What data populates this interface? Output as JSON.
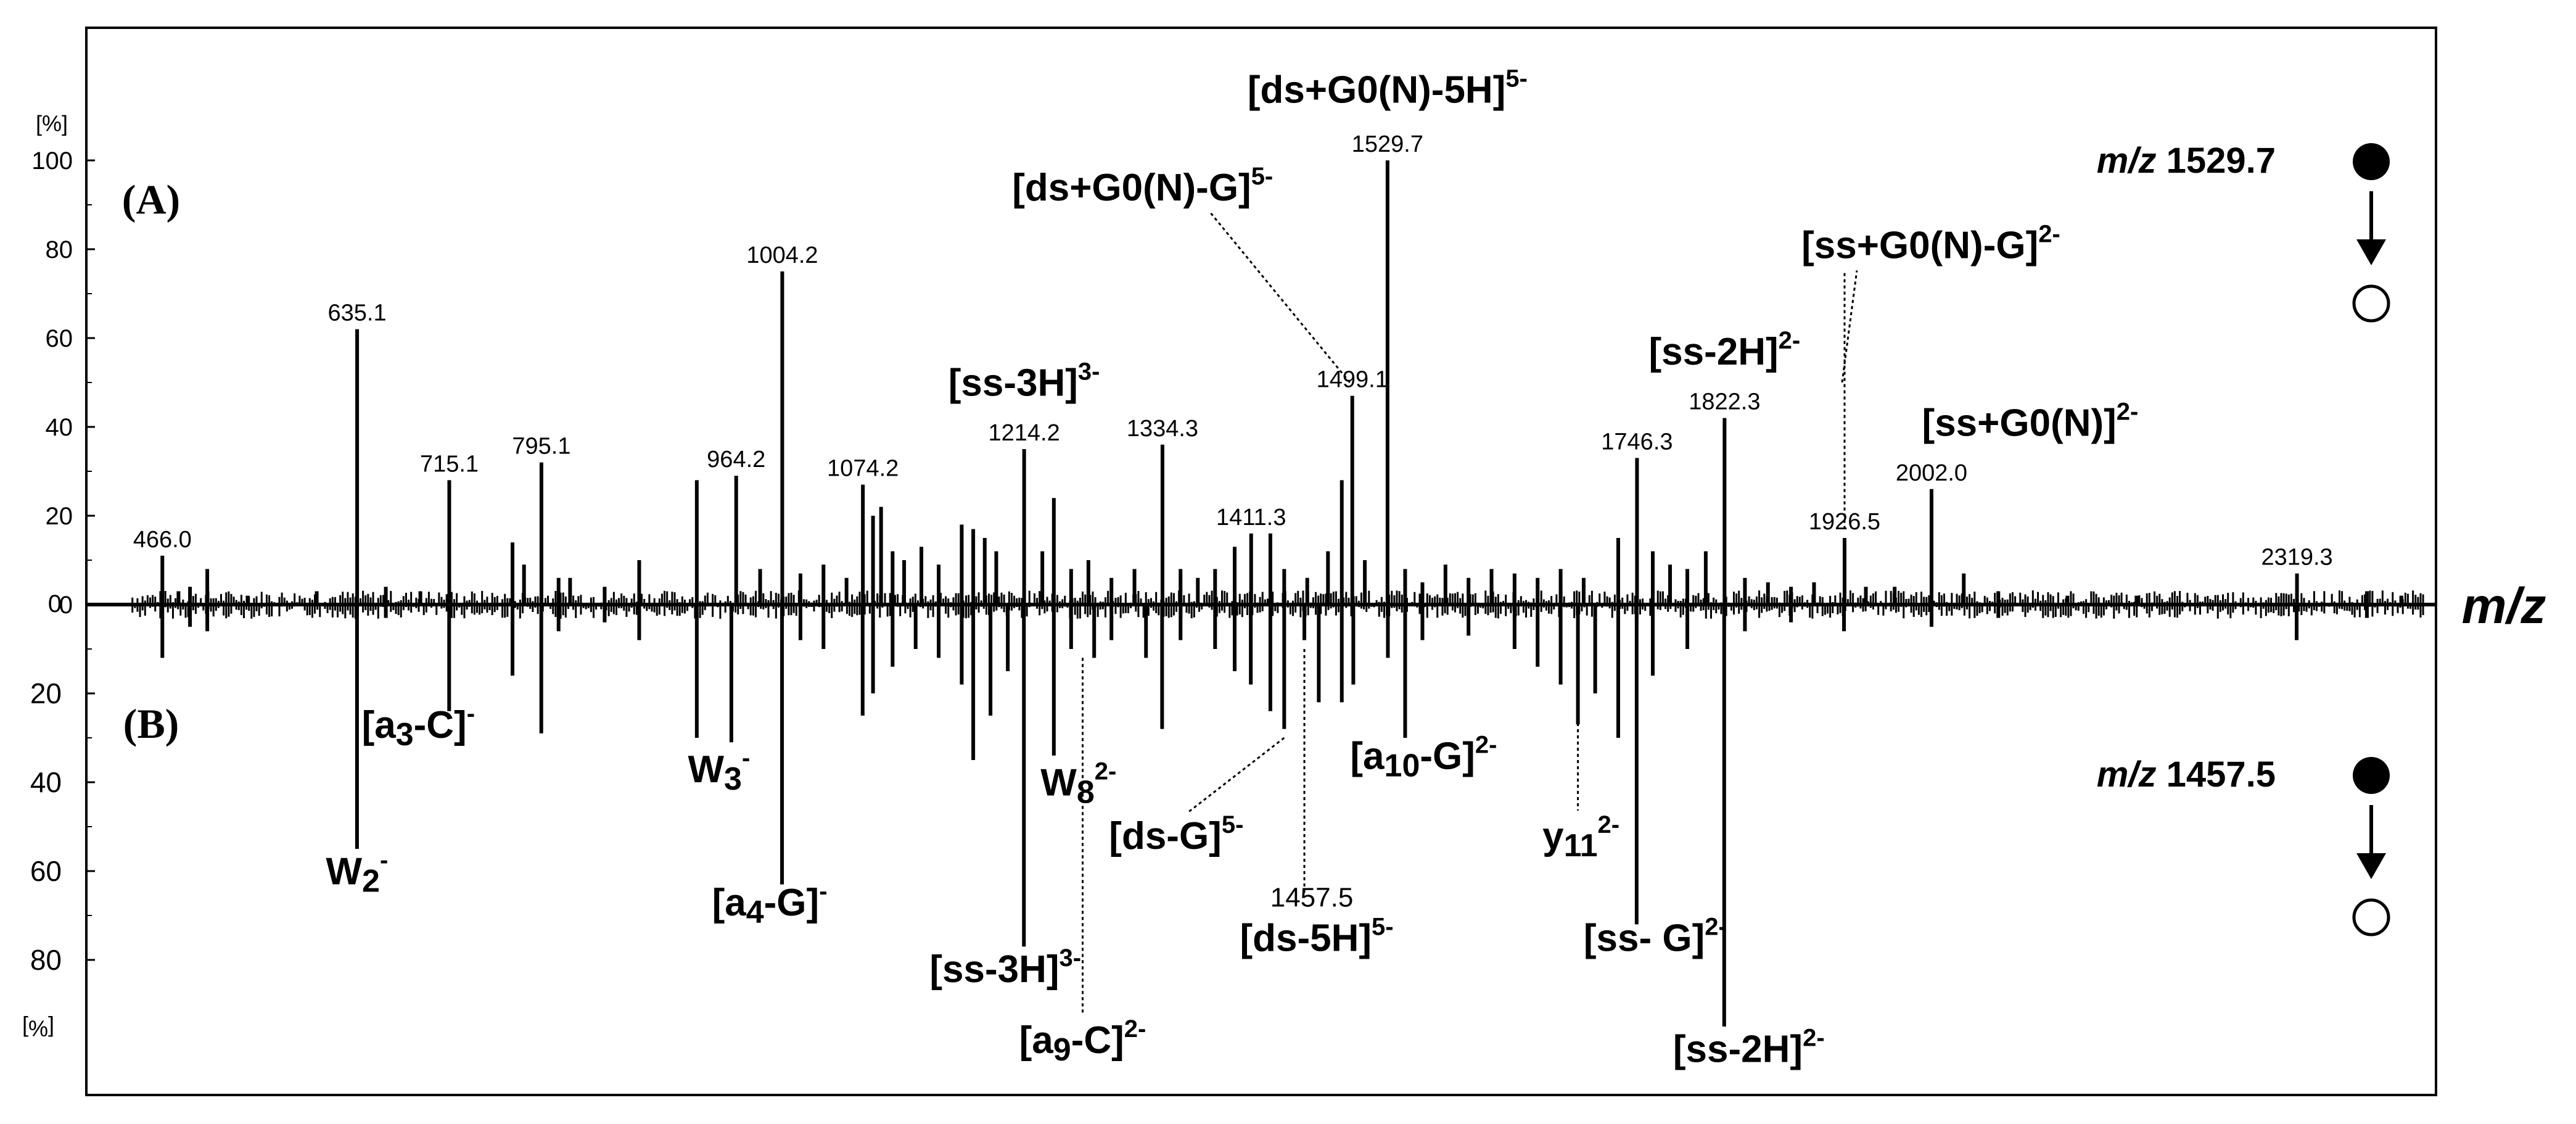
{
  "chart_data": {
    "type": "bar",
    "title": "",
    "xlabel": "m/z",
    "ylabel_top": "[%]",
    "ylabel_bottom": "[%]",
    "ylim_top": [
      0,
      110
    ],
    "ylim_bottom": [
      0,
      100
    ],
    "xlim": [
      400,
      2440
    ],
    "yticks_top": [
      "0",
      "20",
      "40",
      "60",
      "80",
      "100"
    ],
    "yticks_bottom": [
      "20",
      "40",
      "60",
      "80"
    ],
    "grid": false,
    "panels": [
      {
        "name": "(A)",
        "precursor_label": "m/z",
        "precursor_value": "1529.7",
        "direction": "up",
        "peaks": [
          {
            "x": 466.0,
            "y": 11
          },
          {
            "x": 480,
            "y": 3
          },
          {
            "x": 490,
            "y": 4
          },
          {
            "x": 505,
            "y": 8
          },
          {
            "x": 540,
            "y": 2
          },
          {
            "x": 600,
            "y": 3
          },
          {
            "x": 635.1,
            "y": 62
          },
          {
            "x": 660,
            "y": 4
          },
          {
            "x": 690,
            "y": 3
          },
          {
            "x": 715.1,
            "y": 28
          },
          {
            "x": 770,
            "y": 14
          },
          {
            "x": 780,
            "y": 9
          },
          {
            "x": 795.1,
            "y": 32
          },
          {
            "x": 810,
            "y": 6
          },
          {
            "x": 820,
            "y": 6
          },
          {
            "x": 850,
            "y": 4
          },
          {
            "x": 880,
            "y": 10
          },
          {
            "x": 930,
            "y": 28
          },
          {
            "x": 964.2,
            "y": 29
          },
          {
            "x": 985,
            "y": 8
          },
          {
            "x": 1004.2,
            "y": 75
          },
          {
            "x": 1020,
            "y": 7
          },
          {
            "x": 1040,
            "y": 9
          },
          {
            "x": 1060,
            "y": 6
          },
          {
            "x": 1074.2,
            "y": 27
          },
          {
            "x": 1083,
            "y": 20
          },
          {
            "x": 1090,
            "y": 22
          },
          {
            "x": 1100,
            "y": 12
          },
          {
            "x": 1110,
            "y": 10
          },
          {
            "x": 1125,
            "y": 13
          },
          {
            "x": 1140,
            "y": 9
          },
          {
            "x": 1160,
            "y": 18
          },
          {
            "x": 1170,
            "y": 17
          },
          {
            "x": 1180,
            "y": 15
          },
          {
            "x": 1190,
            "y": 12
          },
          {
            "x": 1214.2,
            "y": 35
          },
          {
            "x": 1230,
            "y": 12
          },
          {
            "x": 1240,
            "y": 24
          },
          {
            "x": 1255,
            "y": 8
          },
          {
            "x": 1270,
            "y": 10
          },
          {
            "x": 1290,
            "y": 6
          },
          {
            "x": 1310,
            "y": 8
          },
          {
            "x": 1334.3,
            "y": 36
          },
          {
            "x": 1350,
            "y": 8
          },
          {
            "x": 1365,
            "y": 6
          },
          {
            "x": 1380,
            "y": 8
          },
          {
            "x": 1397,
            "y": 13
          },
          {
            "x": 1411.3,
            "y": 16
          },
          {
            "x": 1428,
            "y": 16
          },
          {
            "x": 1440,
            "y": 8
          },
          {
            "x": 1460,
            "y": 6
          },
          {
            "x": 1478,
            "y": 12
          },
          {
            "x": 1490,
            "y": 28
          },
          {
            "x": 1499.1,
            "y": 47
          },
          {
            "x": 1510,
            "y": 10
          },
          {
            "x": 1529.7,
            "y": 100
          },
          {
            "x": 1545,
            "y": 8
          },
          {
            "x": 1560,
            "y": 5
          },
          {
            "x": 1580,
            "y": 9
          },
          {
            "x": 1600,
            "y": 6
          },
          {
            "x": 1620,
            "y": 8
          },
          {
            "x": 1640,
            "y": 7
          },
          {
            "x": 1660,
            "y": 6
          },
          {
            "x": 1680,
            "y": 8
          },
          {
            "x": 1700,
            "y": 6
          },
          {
            "x": 1730,
            "y": 15
          },
          {
            "x": 1746.3,
            "y": 33
          },
          {
            "x": 1760,
            "y": 12
          },
          {
            "x": 1775,
            "y": 9
          },
          {
            "x": 1790,
            "y": 8
          },
          {
            "x": 1806,
            "y": 12
          },
          {
            "x": 1822.3,
            "y": 42
          },
          {
            "x": 1840,
            "y": 6
          },
          {
            "x": 1860,
            "y": 5
          },
          {
            "x": 1880,
            "y": 4
          },
          {
            "x": 1900,
            "y": 5
          },
          {
            "x": 1926.5,
            "y": 15
          },
          {
            "x": 1945,
            "y": 4
          },
          {
            "x": 1970,
            "y": 4
          },
          {
            "x": 2002.0,
            "y": 26
          },
          {
            "x": 2030,
            "y": 7
          },
          {
            "x": 2060,
            "y": 3
          },
          {
            "x": 2120,
            "y": 2
          },
          {
            "x": 2180,
            "y": 2
          },
          {
            "x": 2319.3,
            "y": 7
          },
          {
            "x": 2380,
            "y": 3
          },
          {
            "x": 2410,
            "y": 2
          }
        ],
        "peak_labels": [
          {
            "x": 466.0,
            "y": 11,
            "text": "466.0"
          },
          {
            "x": 635.1,
            "y": 62,
            "text": "635.1"
          },
          {
            "x": 715.1,
            "y": 28,
            "text": "715.1"
          },
          {
            "x": 795.1,
            "y": 32,
            "text": "795.1"
          },
          {
            "x": 964.2,
            "y": 29,
            "text": "964.2"
          },
          {
            "x": 1004.2,
            "y": 75,
            "text": "1004.2"
          },
          {
            "x": 1074.2,
            "y": 27,
            "text": "1074.2"
          },
          {
            "x": 1214.2,
            "y": 35,
            "text": "1214.2"
          },
          {
            "x": 1334.3,
            "y": 36,
            "text": "1334.3"
          },
          {
            "x": 1411.3,
            "y": 16,
            "text": "1411.3"
          },
          {
            "x": 1499.1,
            "y": 47,
            "text": "1499.1"
          },
          {
            "x": 1529.7,
            "y": 100,
            "text": "1529.7"
          },
          {
            "x": 1746.3,
            "y": 33,
            "text": "1746.3"
          },
          {
            "x": 1822.3,
            "y": 42,
            "text": "1822.3"
          },
          {
            "x": 1926.5,
            "y": 15,
            "text": "1926.5"
          },
          {
            "x": 2002.0,
            "y": 26,
            "text": "2002.0"
          },
          {
            "x": 2319.3,
            "y": 7,
            "text": "2319.3"
          }
        ],
        "ion_labels": [
          {
            "base": "[ds+G0(N)-5H]",
            "sup": "5-",
            "x": 1529.7,
            "level": 113,
            "dotted": false
          },
          {
            "base": "[ds+G0(N)-G]",
            "sup": "5-",
            "x": 1499.1,
            "level": 91,
            "dotted": true
          },
          {
            "base": "[ss+G0(N)-G]",
            "sup": "2-",
            "x": 1926.5,
            "level": 78,
            "dotted": true
          },
          {
            "base": "[ss-2H]",
            "sup": "2-",
            "x": 1822.3,
            "level": 54,
            "dotted": false
          },
          {
            "base": "[ss-3H]",
            "sup": "3-",
            "x": 1214.2,
            "level": 47,
            "dotted": false
          },
          {
            "base": "[ss+G0(N)]",
            "sup": "2-",
            "x": 2002.0,
            "level": 38,
            "dotted": false
          }
        ]
      },
      {
        "name": "(B)",
        "precursor_label": "m/z",
        "precursor_value": "1457.5",
        "direction": "down",
        "peaks": [
          {
            "x": 466,
            "y": 12
          },
          {
            "x": 490,
            "y": 5
          },
          {
            "x": 505,
            "y": 6
          },
          {
            "x": 635,
            "y": 55
          },
          {
            "x": 660,
            "y": 3
          },
          {
            "x": 715,
            "y": 24
          },
          {
            "x": 770,
            "y": 16
          },
          {
            "x": 795,
            "y": 29
          },
          {
            "x": 810,
            "y": 6
          },
          {
            "x": 850,
            "y": 4
          },
          {
            "x": 880,
            "y": 8
          },
          {
            "x": 930,
            "y": 30
          },
          {
            "x": 960,
            "y": 31
          },
          {
            "x": 1004,
            "y": 63
          },
          {
            "x": 1020,
            "y": 8
          },
          {
            "x": 1040,
            "y": 10
          },
          {
            "x": 1074,
            "y": 25
          },
          {
            "x": 1083,
            "y": 20
          },
          {
            "x": 1100,
            "y": 14
          },
          {
            "x": 1120,
            "y": 10
          },
          {
            "x": 1140,
            "y": 12
          },
          {
            "x": 1160,
            "y": 18
          },
          {
            "x": 1170,
            "y": 35
          },
          {
            "x": 1185,
            "y": 25
          },
          {
            "x": 1200,
            "y": 15
          },
          {
            "x": 1214,
            "y": 77
          },
          {
            "x": 1240,
            "y": 34
          },
          {
            "x": 1255,
            "y": 10
          },
          {
            "x": 1275,
            "y": 12
          },
          {
            "x": 1290,
            "y": 8
          },
          {
            "x": 1320,
            "y": 12
          },
          {
            "x": 1334,
            "y": 28
          },
          {
            "x": 1350,
            "y": 8
          },
          {
            "x": 1380,
            "y": 10
          },
          {
            "x": 1397,
            "y": 15
          },
          {
            "x": 1411,
            "y": 18
          },
          {
            "x": 1428,
            "y": 24
          },
          {
            "x": 1440,
            "y": 28
          },
          {
            "x": 1457.5,
            "y": 8
          },
          {
            "x": 1470,
            "y": 22
          },
          {
            "x": 1490,
            "y": 22
          },
          {
            "x": 1500,
            "y": 18
          },
          {
            "x": 1530,
            "y": 12
          },
          {
            "x": 1545,
            "y": 30
          },
          {
            "x": 1560,
            "y": 8
          },
          {
            "x": 1600,
            "y": 7
          },
          {
            "x": 1640,
            "y": 10
          },
          {
            "x": 1660,
            "y": 14
          },
          {
            "x": 1680,
            "y": 18
          },
          {
            "x": 1695,
            "y": 27
          },
          {
            "x": 1710,
            "y": 20
          },
          {
            "x": 1730,
            "y": 30
          },
          {
            "x": 1746,
            "y": 72
          },
          {
            "x": 1760,
            "y": 16
          },
          {
            "x": 1790,
            "y": 10
          },
          {
            "x": 1822,
            "y": 95
          },
          {
            "x": 1840,
            "y": 6
          },
          {
            "x": 1880,
            "y": 4
          },
          {
            "x": 1926,
            "y": 6
          },
          {
            "x": 2002,
            "y": 5
          },
          {
            "x": 2060,
            "y": 3
          },
          {
            "x": 2319,
            "y": 8
          },
          {
            "x": 2380,
            "y": 3
          }
        ],
        "peak_labels": [
          {
            "x": 1457.5,
            "y": 8,
            "text": "1457.5"
          }
        ],
        "ion_labels": [
          {
            "base": "[a",
            "sub": "3",
            "tail": "-C]",
            "sup": "-",
            "x": 715,
            "level": 30,
            "dotted": false
          },
          {
            "base": "W",
            "sub": "2",
            "tail": "",
            "sup": "-",
            "x": 635,
            "level": 63,
            "dotted": false
          },
          {
            "base": "W",
            "sub": "3",
            "tail": "",
            "sup": "-",
            "x": 960,
            "level": 40,
            "dotted": false
          },
          {
            "base": "[a",
            "sub": "4",
            "tail": "-G]",
            "sup": "-",
            "x": 1004,
            "level": 70,
            "dotted": false
          },
          {
            "base": "W",
            "sub": "8",
            "tail": "",
            "sup": "2-",
            "x": 1240,
            "level": 43,
            "dotted": false
          },
          {
            "base": "[ss-3H]",
            "sub": "",
            "tail": "",
            "sup": "3-",
            "x": 1214,
            "level": 85,
            "dotted": false
          },
          {
            "base": "[a",
            "sub": "9",
            "tail": "-C]",
            "sup": "2-",
            "x": 1265,
            "level": 101,
            "dotted": true
          },
          {
            "base": "[ds-G]",
            "sub": "",
            "tail": "",
            "sup": "5-",
            "x": 1440,
            "level": 55,
            "dotted": true
          },
          {
            "base": "[ds-5H]",
            "sub": "",
            "tail": "",
            "sup": "5-",
            "x": 1457.5,
            "level": 78,
            "dotted": true
          },
          {
            "base": "[a",
            "sub": "10",
            "tail": "-G]",
            "sup": "2-",
            "x": 1545,
            "level": 37,
            "dotted": false
          },
          {
            "base": "y",
            "sub": "11",
            "tail": "",
            "sup": "2-",
            "x": 1695,
            "level": 55,
            "dotted": true
          },
          {
            "base": "[ss- G]",
            "sub": "",
            "tail": "",
            "sup": "2-",
            "x": 1746,
            "level": 78,
            "dotted": false
          },
          {
            "base": "[ss-2H]",
            "sub": "",
            "tail": "",
            "sup": "2-",
            "x": 1822,
            "level": 103,
            "dotted": false
          }
        ]
      }
    ]
  }
}
